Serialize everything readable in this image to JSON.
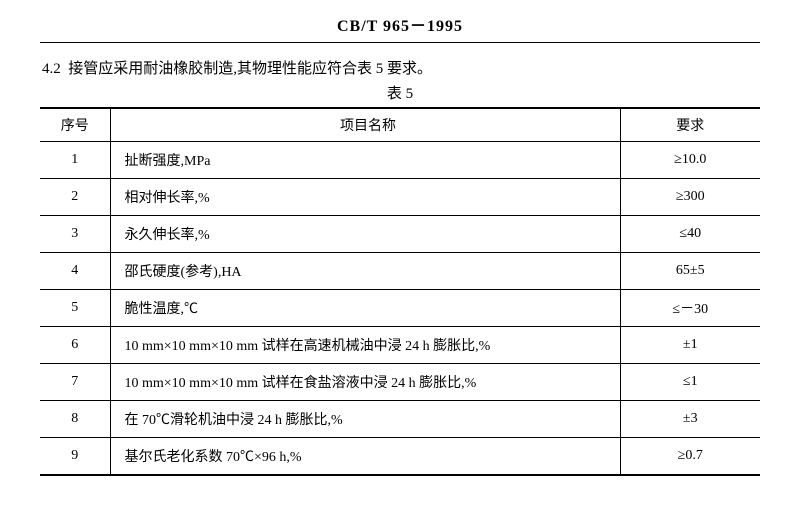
{
  "header": {
    "standard_code": "CB/T 965－1995"
  },
  "section": {
    "number": "4.2",
    "text": "接管应采用耐油橡胶制造,其物理性能应符合表 5 要求。"
  },
  "table": {
    "caption": "表 5",
    "columns": {
      "seq": "序号",
      "name": "项目名称",
      "req": "要求"
    },
    "rows": [
      {
        "seq": "1",
        "name": "扯断强度,MPa",
        "req": "≥10.0"
      },
      {
        "seq": "2",
        "name": "相对伸长率,%",
        "req": "≥300"
      },
      {
        "seq": "3",
        "name": "永久伸长率,%",
        "req": "≤40"
      },
      {
        "seq": "4",
        "name": "邵氏硬度(参考),HA",
        "req": "65±5"
      },
      {
        "seq": "5",
        "name": "脆性温度,℃",
        "req": "≤－30"
      },
      {
        "seq": "6",
        "name": "10 mm×10 mm×10 mm 试样在高速机械油中浸 24 h 膨胀比,%",
        "req": "±1"
      },
      {
        "seq": "7",
        "name": "10 mm×10 mm×10 mm 试样在食盐溶液中浸 24 h 膨胀比,%",
        "req": "≤1"
      },
      {
        "seq": "8",
        "name": "在 70℃滑轮机油中浸 24 h 膨胀比,%",
        "req": "±3"
      },
      {
        "seq": "9",
        "name": "基尔氏老化系数 70℃×96 h,%",
        "req": "≥0.7"
      }
    ]
  }
}
